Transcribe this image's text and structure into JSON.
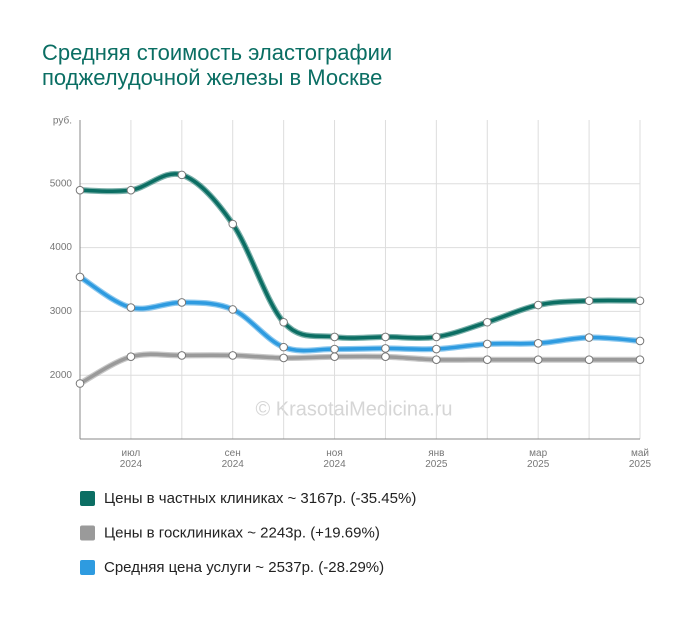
{
  "chart_data": {
    "type": "line",
    "title": [
      "Средняя стоимость эластографии",
      "поджелудочной железы в Москве"
    ],
    "y_unit": "руб.",
    "watermark": "© KrasotaiMedicina.ru",
    "categories": [
      null,
      "июл 2024",
      null,
      "сен 2024",
      null,
      "ноя 2024",
      null,
      "янв 2025",
      null,
      "мар 2025",
      null,
      "май 2025"
    ],
    "ylim": [
      1000,
      6000
    ],
    "yticks": [
      2000,
      3000,
      4000,
      5000
    ],
    "grid": true,
    "series": [
      {
        "name": "Цены в частных клиниках ~ 3167р. (-35.45%)",
        "color": "#0b6e63",
        "values": [
          4900,
          4900,
          5140,
          4370,
          2830,
          2600,
          2600,
          2600,
          2830,
          3100,
          3167,
          3167
        ]
      },
      {
        "name": "Цены в госклиниках ~ 2243р. (+19.69%)",
        "color": "#9a9a9a",
        "values": [
          1870,
          2290,
          2310,
          2310,
          2270,
          2290,
          2290,
          2243,
          2243,
          2243,
          2243,
          2243
        ]
      },
      {
        "name": "Средняя цена услуги ~ 2537р. (-28.29%)",
        "color": "#2e9be0",
        "values": [
          3540,
          3060,
          3140,
          3030,
          2440,
          2410,
          2420,
          2410,
          2490,
          2500,
          2590,
          2537
        ]
      }
    ]
  }
}
